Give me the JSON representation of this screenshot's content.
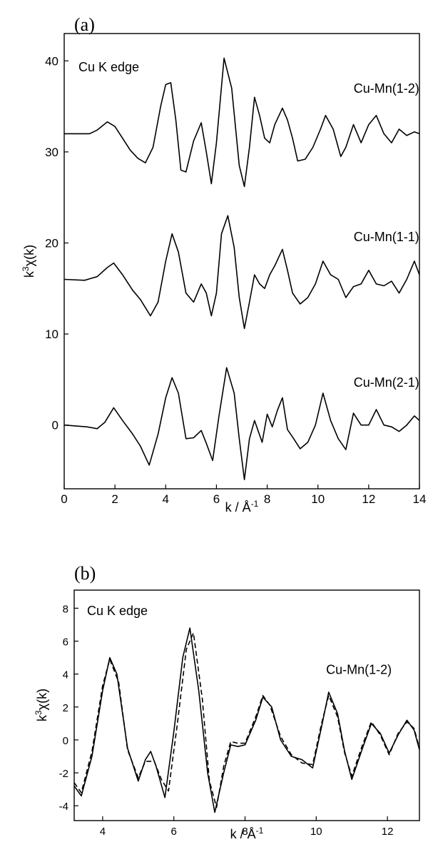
{
  "chart_data": [
    {
      "panel": "(a)",
      "type": "line",
      "annotation": "Cu K edge",
      "xlabel": "k / Å",
      "xlabel_sup": "-1",
      "ylabel": "k",
      "ylabel_sup": "3",
      "ylabel_rest": "χ(k)",
      "xlim": [
        0,
        14
      ],
      "ylim": [
        -7,
        43
      ],
      "xticks": [
        "0",
        "2",
        "4",
        "6",
        "8",
        "10",
        "12",
        "14"
      ],
      "yticks": [
        "0",
        "10",
        "20",
        "30",
        "40"
      ],
      "grid": false,
      "series": [
        {
          "name": "Cu-Mn(1-2)",
          "label_at": [
            12.7,
            36.5
          ],
          "x": [
            0,
            1.0,
            1.3,
            1.7,
            2.0,
            2.3,
            2.6,
            2.9,
            3.2,
            3.5,
            3.8,
            4.0,
            4.2,
            4.4,
            4.6,
            4.8,
            5.1,
            5.4,
            5.6,
            5.8,
            6.0,
            6.3,
            6.6,
            6.9,
            7.1,
            7.3,
            7.5,
            7.7,
            7.9,
            8.1,
            8.3,
            8.6,
            8.8,
            9.0,
            9.2,
            9.5,
            9.8,
            10.1,
            10.3,
            10.6,
            10.9,
            11.1,
            11.4,
            11.7,
            12.0,
            12.3,
            12.6,
            12.9,
            13.2,
            13.5,
            13.8,
            14.0
          ],
          "y": [
            32.0,
            32.0,
            32.4,
            33.3,
            32.8,
            31.5,
            30.2,
            29.3,
            28.8,
            30.5,
            35.0,
            37.4,
            37.6,
            33.5,
            28.0,
            27.8,
            31.2,
            33.2,
            30.0,
            26.5,
            31.0,
            40.3,
            37.0,
            28.5,
            26.2,
            30.5,
            36.0,
            34.0,
            31.5,
            31.0,
            33.0,
            34.8,
            33.5,
            31.5,
            29.0,
            29.2,
            30.5,
            32.5,
            34.0,
            32.5,
            29.5,
            30.5,
            33.0,
            31.0,
            33.0,
            34.0,
            32.0,
            31.0,
            32.5,
            31.8,
            32.2,
            32.0
          ]
        },
        {
          "name": "Cu-Mn(1-1)",
          "label_at": [
            12.7,
            20.2
          ],
          "x": [
            0,
            0.8,
            1.3,
            1.7,
            1.95,
            2.3,
            2.7,
            3.0,
            3.4,
            3.7,
            4.0,
            4.25,
            4.5,
            4.8,
            5.1,
            5.4,
            5.6,
            5.8,
            6.0,
            6.2,
            6.45,
            6.7,
            6.9,
            7.1,
            7.3,
            7.5,
            7.7,
            7.9,
            8.1,
            8.3,
            8.6,
            8.8,
            9.0,
            9.3,
            9.6,
            9.9,
            10.2,
            10.5,
            10.8,
            11.1,
            11.4,
            11.7,
            12.0,
            12.3,
            12.6,
            12.9,
            13.2,
            13.5,
            13.8,
            14.0
          ],
          "y": [
            16.0,
            15.9,
            16.3,
            17.3,
            17.8,
            16.5,
            14.8,
            13.8,
            12.0,
            13.5,
            18.0,
            21.0,
            19.0,
            14.5,
            13.5,
            15.5,
            14.5,
            12.0,
            14.5,
            21.0,
            23.0,
            19.5,
            14.0,
            10.6,
            13.5,
            16.5,
            15.5,
            15.0,
            16.5,
            17.5,
            19.3,
            17.0,
            14.5,
            13.3,
            14.0,
            15.5,
            18.0,
            16.5,
            16.0,
            14.0,
            15.2,
            15.5,
            17.0,
            15.5,
            15.3,
            15.8,
            14.5,
            16.0,
            18.0,
            16.5
          ]
        },
        {
          "name": "Cu-Mn(2-1)",
          "label_at": [
            12.7,
            4.2
          ],
          "x": [
            0,
            0.9,
            1.3,
            1.6,
            1.95,
            2.3,
            2.7,
            3.0,
            3.35,
            3.7,
            4.0,
            4.25,
            4.5,
            4.8,
            5.1,
            5.4,
            5.6,
            5.85,
            6.1,
            6.4,
            6.7,
            6.9,
            7.1,
            7.3,
            7.5,
            7.8,
            8.0,
            8.2,
            8.4,
            8.6,
            8.8,
            9.0,
            9.3,
            9.6,
            9.9,
            10.2,
            10.5,
            10.8,
            11.1,
            11.4,
            11.7,
            12.0,
            12.3,
            12.6,
            12.9,
            13.2,
            13.5,
            13.8,
            14.0
          ],
          "y": [
            0.0,
            -0.2,
            -0.4,
            0.3,
            1.9,
            0.5,
            -1.0,
            -2.3,
            -4.4,
            -1.0,
            3.0,
            5.2,
            3.5,
            -1.5,
            -1.4,
            -0.6,
            -2.0,
            -3.9,
            1.0,
            6.3,
            3.5,
            -1.5,
            -6.0,
            -1.5,
            0.5,
            -1.9,
            1.2,
            -0.2,
            1.6,
            3.0,
            -0.5,
            -1.3,
            -2.6,
            -1.9,
            0.0,
            3.5,
            0.5,
            -1.5,
            -2.7,
            1.3,
            0.0,
            0.0,
            1.7,
            0.0,
            -0.2,
            -0.7,
            0.0,
            1.0,
            0.5
          ]
        }
      ]
    },
    {
      "panel": "(b)",
      "type": "line",
      "annotation": "Cu K edge",
      "curve_label": "Cu-Mn(1-2)",
      "label_at": [
        11.2,
        4.0
      ],
      "xlabel": "k / Å",
      "xlabel_sup": "-1",
      "ylabel": "k",
      "ylabel_sup": "3",
      "ylabel_rest": "χ(k)",
      "xlim": [
        3.2,
        12.9
      ],
      "ylim": [
        -4.9,
        9.1
      ],
      "xticks": [
        "4",
        "6",
        "8",
        "10",
        "12"
      ],
      "yticks": [
        "-4",
        "-2",
        "0",
        "2",
        "4",
        "6",
        "8"
      ],
      "grid": false,
      "series": [
        {
          "style": "solid",
          "x": [
            3.2,
            3.4,
            3.7,
            4.0,
            4.2,
            4.4,
            4.7,
            5.0,
            5.2,
            5.35,
            5.5,
            5.75,
            6.0,
            6.25,
            6.45,
            6.7,
            6.95,
            7.15,
            7.4,
            7.6,
            7.8,
            8.0,
            8.3,
            8.5,
            8.75,
            9.0,
            9.3,
            9.6,
            9.9,
            10.15,
            10.35,
            10.6,
            10.8,
            11.0,
            11.3,
            11.55,
            11.8,
            12.05,
            12.3,
            12.55,
            12.75,
            12.9
          ],
          "y": [
            -2.8,
            -3.4,
            -1.0,
            3.0,
            5.0,
            4.0,
            -0.5,
            -2.5,
            -1.2,
            -0.7,
            -1.6,
            -3.5,
            0.5,
            5.0,
            6.8,
            3.0,
            -2.0,
            -4.4,
            -2.0,
            -0.3,
            -0.4,
            -0.3,
            1.2,
            2.6,
            2.0,
            0.0,
            -1.0,
            -1.2,
            -1.7,
            0.8,
            2.9,
            1.6,
            -0.7,
            -2.4,
            -0.5,
            1.0,
            0.4,
            -0.8,
            0.3,
            1.2,
            0.6,
            -0.6
          ]
        },
        {
          "style": "dashed",
          "x": [
            3.2,
            3.4,
            3.7,
            4.0,
            4.2,
            4.45,
            4.7,
            5.0,
            5.2,
            5.45,
            5.65,
            5.85,
            6.1,
            6.35,
            6.55,
            6.8,
            7.0,
            7.2,
            7.4,
            7.6,
            7.8,
            8.0,
            8.3,
            8.5,
            8.7,
            9.0,
            9.3,
            9.6,
            9.9,
            10.15,
            10.35,
            10.6,
            10.8,
            11.0,
            11.3,
            11.55,
            11.8,
            12.05,
            12.3,
            12.55,
            12.75,
            12.9
          ],
          "y": [
            -2.6,
            -3.2,
            -0.7,
            3.3,
            4.9,
            3.5,
            -0.6,
            -2.3,
            -1.3,
            -1.3,
            -2.4,
            -3.1,
            1.0,
            5.5,
            6.5,
            2.5,
            -2.5,
            -4.1,
            -1.6,
            -0.1,
            -0.2,
            -0.2,
            1.4,
            2.7,
            2.1,
            0.2,
            -0.9,
            -1.4,
            -1.5,
            1.0,
            2.7,
            1.4,
            -0.8,
            -2.2,
            -0.3,
            1.1,
            0.3,
            -0.9,
            0.4,
            1.1,
            0.7,
            -0.5
          ]
        }
      ]
    }
  ]
}
